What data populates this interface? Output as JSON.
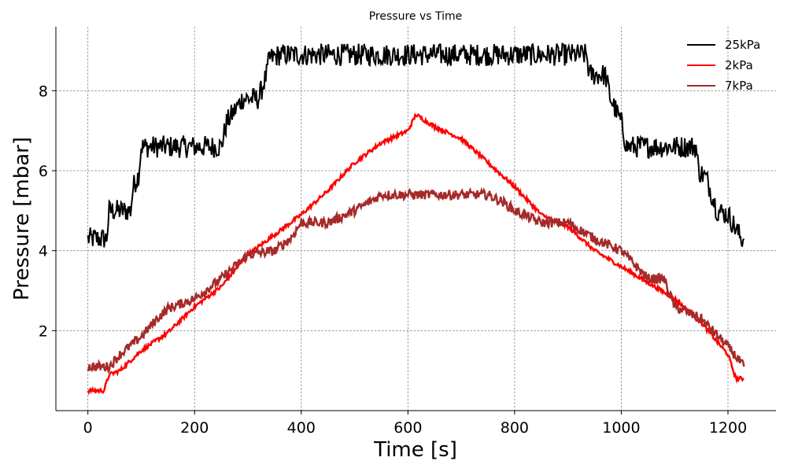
{
  "chart_data": {
    "type": "line",
    "title": "Pressure vs Time",
    "xlabel": "Time [s]",
    "ylabel": "Pressure [mbar]",
    "xlim": [
      -60,
      1290
    ],
    "ylim": [
      0,
      9.6
    ],
    "xticks": [
      0,
      200,
      400,
      600,
      800,
      1000,
      1200
    ],
    "yticks": [
      2,
      4,
      6,
      8
    ],
    "grid": true,
    "legend_position": "top-right",
    "series": [
      {
        "name": "25kPa",
        "color": "#000000",
        "stroke_width": 2,
        "noise": 0.28,
        "x": [
          0,
          35,
          40,
          80,
          85,
          95,
          100,
          130,
          200,
          250,
          260,
          290,
          320,
          335,
          340,
          360,
          400,
          500,
          700,
          900,
          935,
          940,
          970,
          980,
          1000,
          1010,
          1080,
          1140,
          1145,
          1160,
          1180,
          1200,
          1225,
          1230
        ],
        "y": [
          4.3,
          4.3,
          5.0,
          5.0,
          5.6,
          5.9,
          6.6,
          6.6,
          6.6,
          6.6,
          7.2,
          7.8,
          7.8,
          8.4,
          8.8,
          8.9,
          8.9,
          8.9,
          8.9,
          8.9,
          8.9,
          8.4,
          8.4,
          7.8,
          7.2,
          6.6,
          6.6,
          6.6,
          6.0,
          5.8,
          5.0,
          4.9,
          4.3,
          4.3
        ]
      },
      {
        "name": "2kPa",
        "color": "#ff0000",
        "stroke_width": 2.5,
        "noise": 0.05,
        "x": [
          0,
          30,
          40,
          60,
          100,
          150,
          200,
          250,
          300,
          350,
          400,
          450,
          500,
          550,
          600,
          615,
          650,
          700,
          750,
          800,
          850,
          900,
          950,
          1000,
          1050,
          1100,
          1150,
          1200,
          1215,
          1230
        ],
        "y": [
          0.5,
          0.5,
          0.9,
          1.0,
          1.5,
          1.95,
          2.6,
          3.1,
          3.9,
          4.4,
          4.9,
          5.5,
          6.2,
          6.7,
          7.0,
          7.4,
          7.1,
          6.8,
          6.2,
          5.6,
          4.9,
          4.6,
          4.0,
          3.6,
          3.2,
          2.8,
          2.2,
          1.4,
          0.8,
          0.8
        ]
      },
      {
        "name": "7kPa",
        "color": "#a52a2a",
        "stroke_width": 2.5,
        "noise": 0.12,
        "x": [
          0,
          40,
          60,
          100,
          130,
          150,
          200,
          250,
          300,
          350,
          380,
          400,
          450,
          500,
          550,
          600,
          650,
          700,
          750,
          780,
          800,
          850,
          900,
          950,
          1000,
          1050,
          1080,
          1100,
          1150,
          1200,
          1230
        ],
        "y": [
          1.1,
          1.1,
          1.4,
          1.85,
          2.3,
          2.55,
          2.8,
          3.3,
          3.9,
          4.0,
          4.3,
          4.7,
          4.7,
          5.0,
          5.4,
          5.4,
          5.4,
          5.4,
          5.4,
          5.2,
          5.0,
          4.7,
          4.7,
          4.3,
          4.0,
          3.3,
          3.3,
          2.6,
          2.3,
          1.6,
          1.1
        ]
      }
    ]
  }
}
